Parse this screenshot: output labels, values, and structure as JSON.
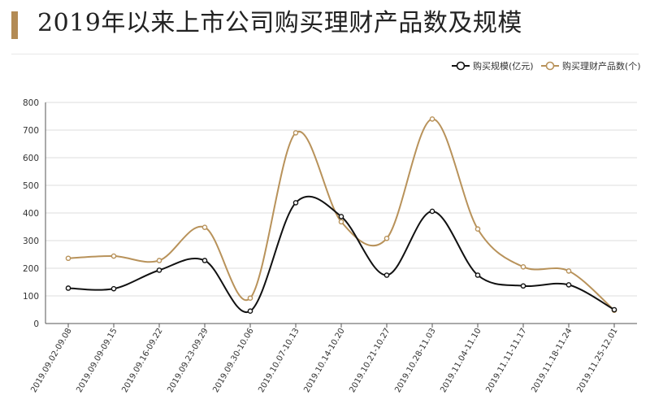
{
  "title": "2019年以来上市公司购买理财产品数及规模",
  "chart_data": {
    "type": "line",
    "categories": [
      "2019.09.02-09.08",
      "2019.09.09-09.15",
      "2019.09.16-09.22",
      "2019.09.23-09.29",
      "2019.09.30-10.06",
      "2019.10.07-10.13",
      "2019.10.14-10.20",
      "2019.10.21-10.27",
      "2019.10.28-11.03",
      "2019.11.04-11.10",
      "2019.11.11-11.17",
      "2019.11.18-11.24",
      "2019.11.25-12.01"
    ],
    "series": [
      {
        "name": "购买规模(亿元)",
        "color": "#111111",
        "values": [
          128,
          126,
          193,
          228,
          45,
          437,
          387,
          175,
          406,
          175,
          136,
          140,
          50
        ]
      },
      {
        "name": "购买理财产品数(个)",
        "color": "#b8925a",
        "values": [
          236,
          244,
          228,
          348,
          92,
          690,
          368,
          308,
          740,
          342,
          205,
          190,
          48
        ]
      }
    ],
    "ylim": [
      0,
      800
    ],
    "yticks": [
      0,
      100,
      200,
      300,
      400,
      500,
      600,
      700,
      800
    ],
    "smooth": true,
    "grid": true,
    "legend": "top-right"
  }
}
